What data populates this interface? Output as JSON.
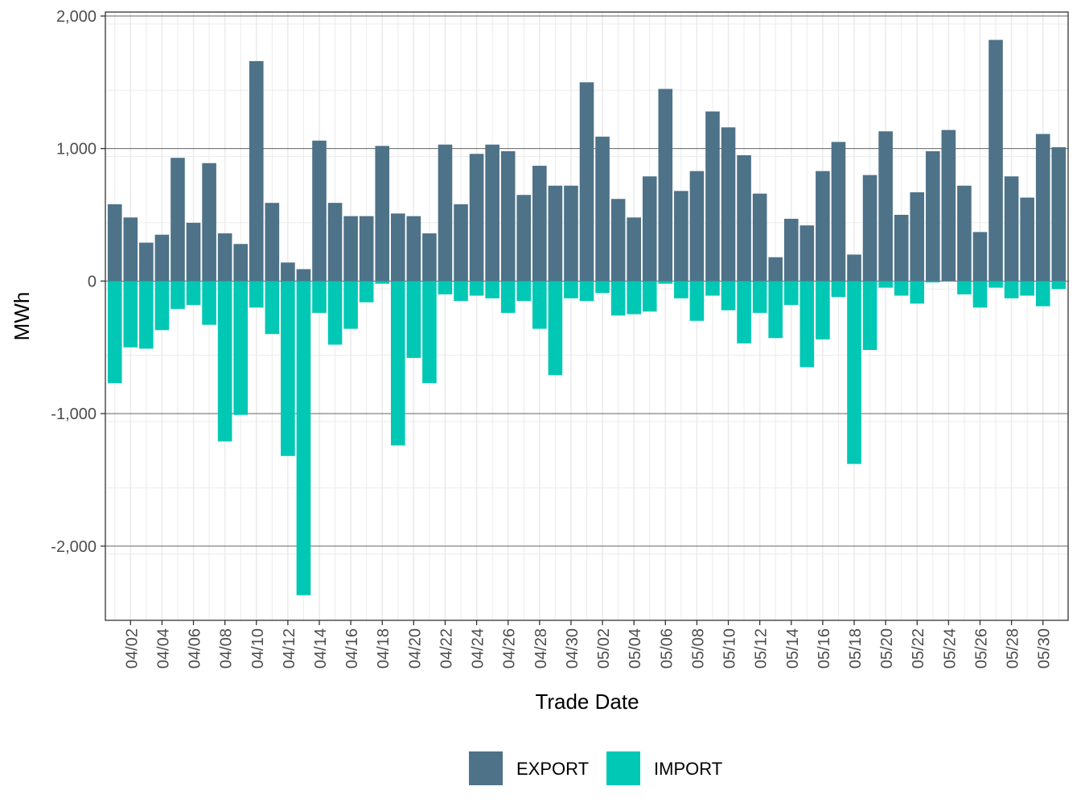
{
  "chart_data": {
    "type": "bar",
    "stacked": true,
    "title": "",
    "xlabel": "Trade Date",
    "ylabel": "MWh",
    "ylim": [
      -2560,
      2030
    ],
    "yticks": [
      2000,
      1000,
      0,
      -1000,
      -2000
    ],
    "ytick_labels": [
      "2,000",
      "1,000",
      "0",
      "-1,000",
      "-2,000"
    ],
    "grid": true,
    "legend_position": "bottom",
    "categories": [
      "04/01",
      "04/02",
      "04/03",
      "04/04",
      "04/05",
      "04/06",
      "04/07",
      "04/08",
      "04/09",
      "04/10",
      "04/11",
      "04/12",
      "04/13",
      "04/14",
      "04/15",
      "04/16",
      "04/17",
      "04/18",
      "04/19",
      "04/20",
      "04/21",
      "04/22",
      "04/23",
      "04/24",
      "04/25",
      "04/26",
      "04/27",
      "04/28",
      "04/29",
      "04/30",
      "05/01",
      "05/02",
      "05/03",
      "05/04",
      "05/05",
      "05/06",
      "05/07",
      "05/08",
      "05/09",
      "05/10",
      "05/11",
      "05/12",
      "05/13",
      "05/14",
      "05/15",
      "05/16",
      "05/17",
      "05/18",
      "05/19",
      "05/20",
      "05/21",
      "05/22",
      "05/23",
      "05/24",
      "05/25",
      "05/26",
      "05/27",
      "05/28",
      "05/29",
      "05/30",
      "05/31"
    ],
    "xtick_labels": [
      "04/02",
      "04/04",
      "04/06",
      "04/08",
      "04/10",
      "04/12",
      "04/14",
      "04/16",
      "04/18",
      "04/20",
      "04/22",
      "04/24",
      "04/26",
      "04/28",
      "04/30",
      "05/02",
      "05/04",
      "05/06",
      "05/08",
      "05/10",
      "05/12",
      "05/14",
      "05/16",
      "05/18",
      "05/20",
      "05/22",
      "05/24",
      "05/26",
      "05/28",
      "05/30"
    ],
    "series": [
      {
        "name": "EXPORT",
        "color": "#4e7288",
        "values": [
          580,
          480,
          290,
          350,
          930,
          440,
          890,
          360,
          280,
          1660,
          590,
          140,
          90,
          1060,
          590,
          490,
          490,
          1020,
          510,
          490,
          360,
          1030,
          580,
          960,
          1030,
          980,
          650,
          870,
          720,
          720,
          1500,
          1090,
          620,
          480,
          790,
          1450,
          680,
          830,
          1280,
          1160,
          950,
          660,
          180,
          470,
          420,
          830,
          1050,
          200,
          800,
          1130,
          500,
          670,
          980,
          1140,
          720,
          370,
          1820,
          790,
          630,
          1110,
          1010
        ]
      },
      {
        "name": "IMPORT",
        "color": "#00c8b4",
        "values": [
          -770,
          -500,
          -510,
          -370,
          -210,
          -180,
          -330,
          -1210,
          -1010,
          -200,
          -400,
          -1320,
          -2370,
          -240,
          -480,
          -360,
          -160,
          -20,
          -1240,
          -580,
          -770,
          -100,
          -150,
          -110,
          -130,
          -240,
          -150,
          -360,
          -710,
          -130,
          -150,
          -90,
          -260,
          -250,
          -230,
          -20,
          -130,
          -300,
          -110,
          -220,
          -470,
          -240,
          -430,
          -180,
          -650,
          -440,
          -120,
          -1380,
          -520,
          -50,
          -110,
          -170,
          -10,
          0,
          -100,
          -200,
          -50,
          -130,
          -110,
          -190,
          -60
        ]
      }
    ]
  }
}
